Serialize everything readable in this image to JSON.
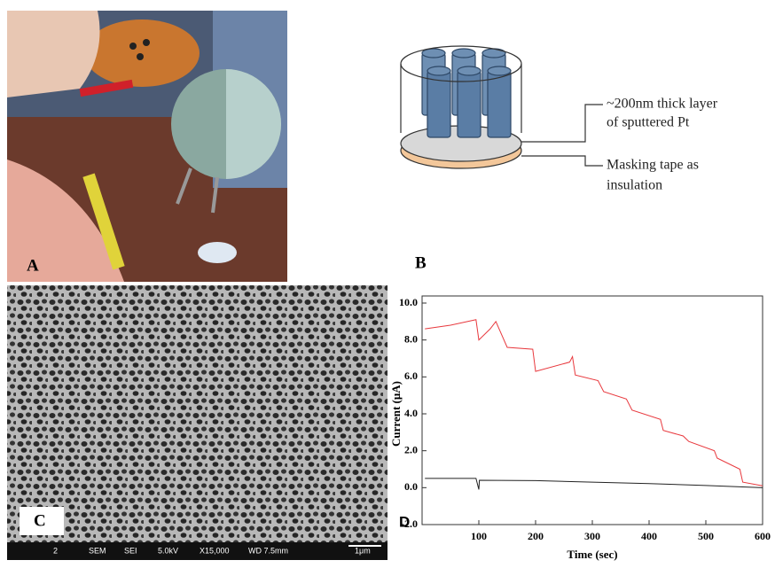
{
  "panels": {
    "a": "A",
    "b": "B",
    "c": "C",
    "d": "D"
  },
  "diagram": {
    "layer_label": [
      "~200nm thick layer",
      "of sputtered Pt"
    ],
    "tape_label": [
      "Masking tape as",
      "insulation"
    ]
  },
  "sem": {
    "info": [
      "2",
      "SEM",
      "SEI",
      "5.0kV",
      "X15,000",
      "WD 7.5mm",
      "1μm"
    ]
  },
  "chart_data": {
    "type": "line",
    "x_label": "Time (sec)",
    "y_label": "Current (μA)",
    "xlim": [
      0,
      600
    ],
    "ylim": [
      -2,
      10
    ],
    "xticks": [
      100,
      200,
      300,
      400,
      500,
      600
    ],
    "yticks": [
      {
        "value": -2,
        "label": "-2.0"
      },
      {
        "value": 0,
        "label": "0.0"
      },
      {
        "value": 2,
        "label": "2.0"
      },
      {
        "value": 4,
        "label": "4.0"
      },
      {
        "value": 6,
        "label": "6.0"
      },
      {
        "value": 8,
        "label": "8.0"
      },
      {
        "value": 10,
        "label": "10.0"
      }
    ],
    "series": [
      {
        "color": "#e8383d",
        "x": [
          5,
          50,
          95,
          100,
          120,
          130,
          150,
          195,
          200,
          260,
          265,
          270,
          310,
          320,
          360,
          370,
          420,
          425,
          460,
          470,
          515,
          520,
          560,
          565,
          600
        ],
        "values": [
          8.6,
          8.8,
          9.1,
          8.0,
          8.6,
          9.0,
          7.6,
          7.5,
          6.3,
          6.8,
          7.1,
          6.1,
          5.8,
          5.2,
          4.8,
          4.2,
          3.7,
          3.1,
          2.8,
          2.5,
          2.0,
          1.6,
          1.0,
          0.3,
          0.1
        ]
      },
      {
        "color": "#222222",
        "x": [
          5,
          95,
          100,
          101,
          200,
          300,
          400,
          500,
          600
        ],
        "values": [
          0.5,
          0.5,
          -0.1,
          0.4,
          0.38,
          0.3,
          0.22,
          0.12,
          0.0
        ]
      }
    ]
  }
}
